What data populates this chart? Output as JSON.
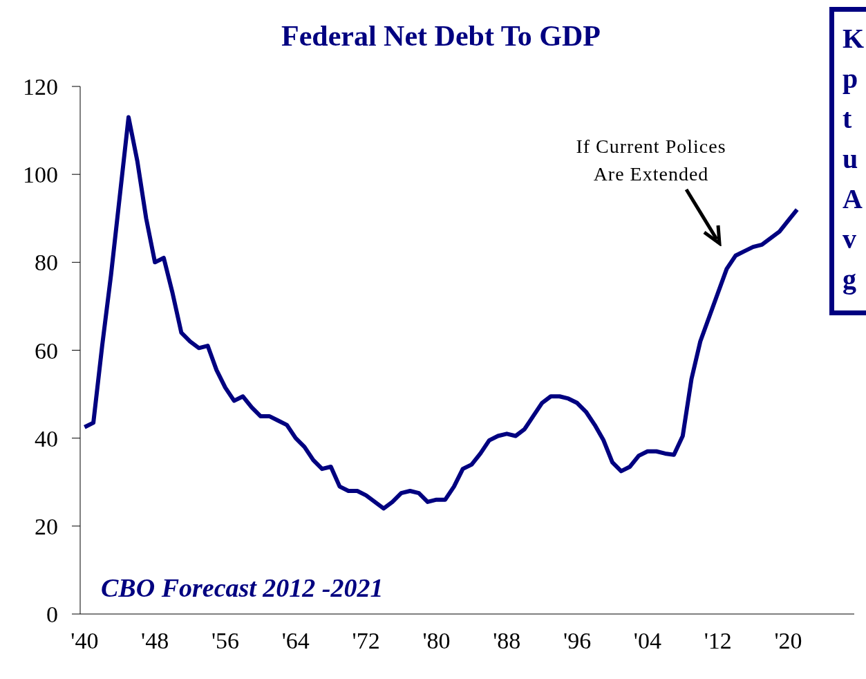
{
  "chart_data": {
    "type": "line",
    "title": "Federal Net Debt To GDP",
    "x": [
      1940,
      1941,
      1942,
      1943,
      1944,
      1945,
      1946,
      1947,
      1948,
      1949,
      1950,
      1951,
      1952,
      1953,
      1954,
      1955,
      1956,
      1957,
      1958,
      1959,
      1960,
      1961,
      1962,
      1963,
      1964,
      1965,
      1966,
      1967,
      1968,
      1969,
      1970,
      1971,
      1972,
      1973,
      1974,
      1975,
      1976,
      1977,
      1978,
      1979,
      1980,
      1981,
      1982,
      1983,
      1984,
      1985,
      1986,
      1987,
      1988,
      1989,
      1990,
      1991,
      1992,
      1993,
      1994,
      1995,
      1996,
      1997,
      1998,
      1999,
      2000,
      2001,
      2002,
      2003,
      2004,
      2005,
      2006,
      2007,
      2008,
      2009,
      2010,
      2011,
      2012,
      2013,
      2014,
      2015,
      2016,
      2017,
      2018,
      2019,
      2020,
      2021
    ],
    "series": [
      {
        "color": "#000080",
        "values": [
          42.5,
          43.5,
          61,
          77,
          95,
          113,
          103,
          90,
          80,
          81,
          73,
          64,
          62,
          60.5,
          61,
          55.5,
          51.5,
          48.5,
          49.5,
          47,
          45,
          45,
          44,
          43,
          40,
          38,
          35,
          33,
          33.5,
          29,
          28,
          28,
          27,
          25.5,
          24,
          25.5,
          27.5,
          28,
          27.5,
          25.5,
          26,
          26,
          29,
          33,
          34,
          36.5,
          39.5,
          40.5,
          41,
          40.5,
          42,
          45,
          48,
          49.5,
          49.5,
          49,
          48,
          46,
          43,
          39.5,
          34.5,
          32.5,
          33.5,
          36,
          37,
          37,
          36.5,
          36.2,
          40.5,
          53.5,
          62,
          67.5,
          73,
          78.5,
          81.5,
          82.5,
          83.5,
          84,
          85.5,
          87,
          89.5,
          92
        ]
      }
    ],
    "xlim": [
      1939.5,
      2027.5
    ],
    "xticks": [
      {
        "value": 1940,
        "label": "'40"
      },
      {
        "value": 1948,
        "label": "'48"
      },
      {
        "value": 1956,
        "label": "'56"
      },
      {
        "value": 1964,
        "label": "'64"
      },
      {
        "value": 1972,
        "label": "'72"
      },
      {
        "value": 1980,
        "label": "'80"
      },
      {
        "value": 1988,
        "label": "'88"
      },
      {
        "value": 1996,
        "label": "'96"
      },
      {
        "value": 2004,
        "label": "'04"
      },
      {
        "value": 2012,
        "label": "'12"
      },
      {
        "value": 2020,
        "label": "'20"
      }
    ],
    "ylim": [
      0,
      120
    ],
    "yticks": [
      0,
      20,
      40,
      60,
      80,
      100,
      120
    ],
    "grid": false,
    "marker": "none",
    "line_style": "solid",
    "annotations": [
      "CBO Forecast 2012 -2021",
      "If Current Polices Are Extended",
      "K",
      "p",
      "t",
      "u",
      "A",
      "v",
      "g"
    ]
  }
}
